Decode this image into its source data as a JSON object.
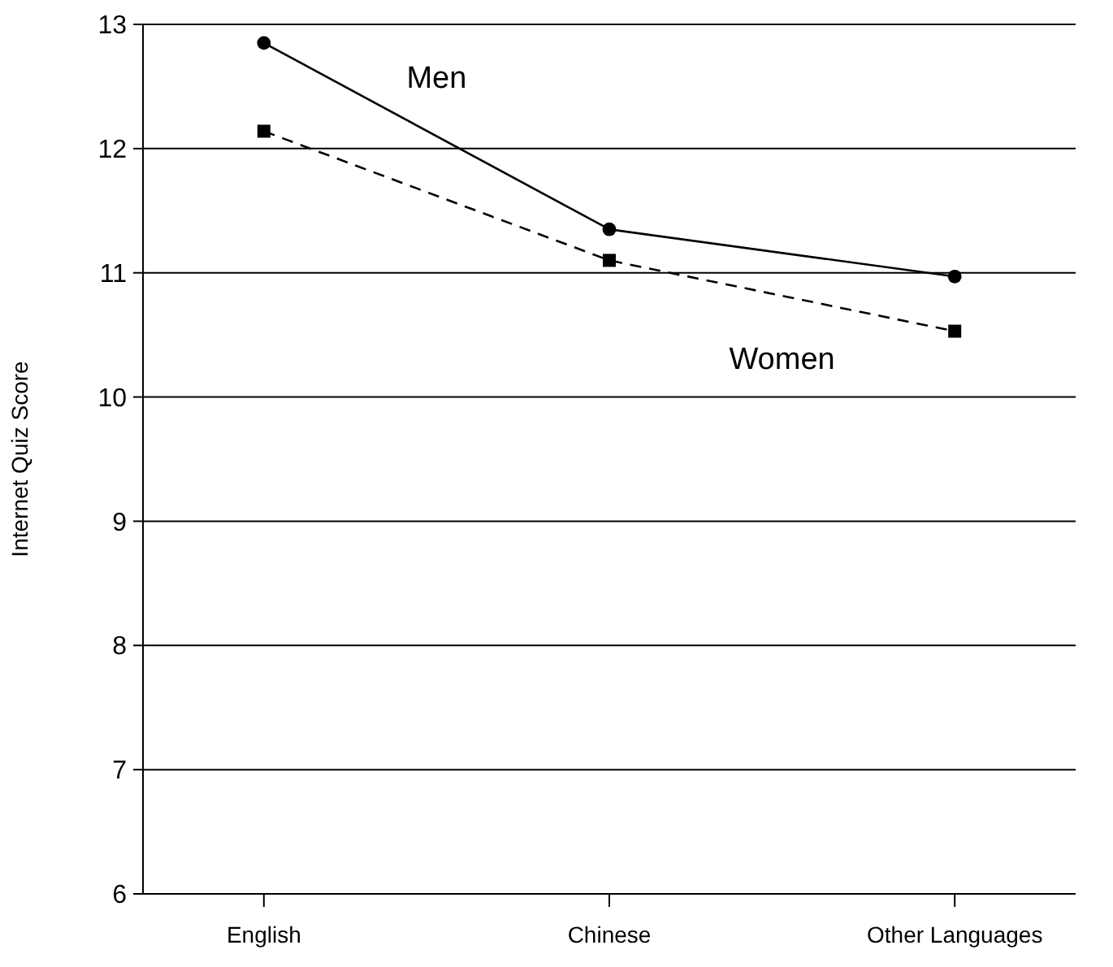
{
  "chart_data": {
    "type": "line",
    "ylabel": "Internet Quiz Score",
    "categories": [
      "English",
      "Chinese",
      "Other Languages"
    ],
    "series": [
      {
        "name": "Men",
        "color": "#000000",
        "values": [
          12.85,
          11.35,
          10.97
        ],
        "marker": "circle",
        "line_style": "solid"
      },
      {
        "name": "Women",
        "color": "#000000",
        "values": [
          12.14,
          11.1,
          10.53
        ],
        "marker": "square",
        "line_style": "dashed"
      }
    ],
    "ylim": [
      6,
      13
    ],
    "yticks": [
      6,
      7,
      8,
      9,
      10,
      11,
      12,
      13
    ],
    "grid": "y",
    "legend": false
  }
}
